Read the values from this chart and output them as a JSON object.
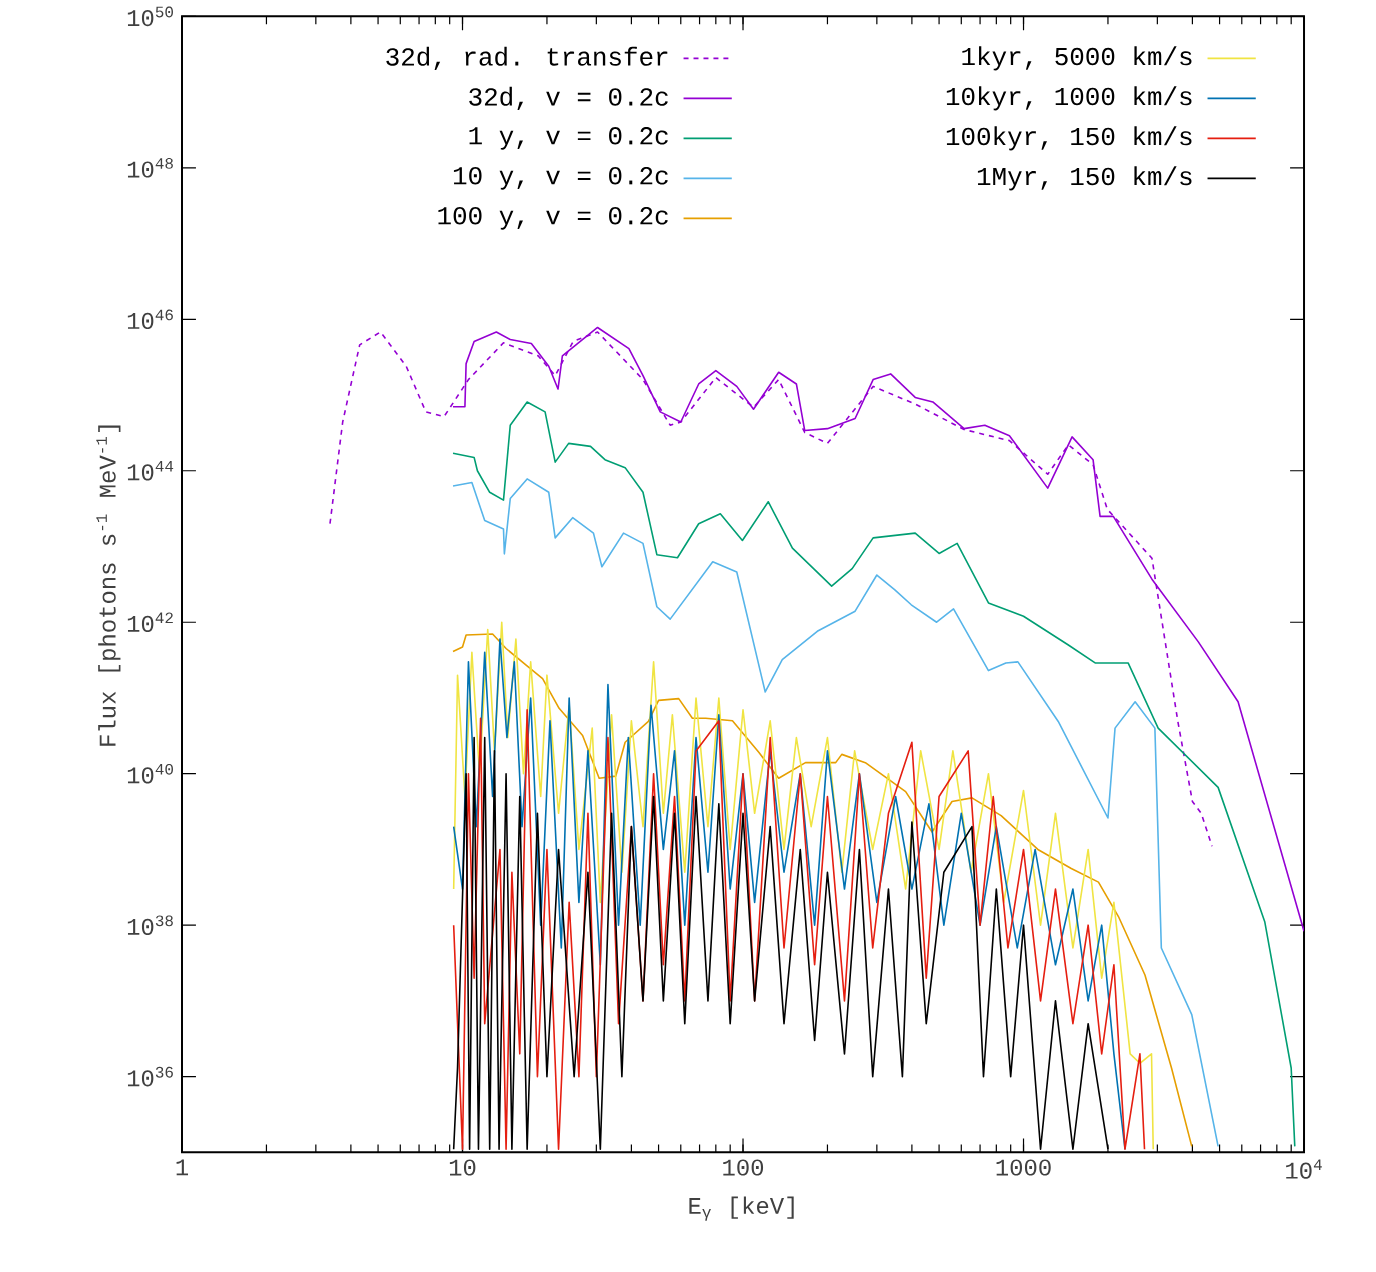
{
  "chart_data": {
    "type": "line",
    "xlabel": "E$_{γ}$ [keV]",
    "ylabel": "Flux [photons s$^{-1}$ MeV$^{-1}$]",
    "log": "xy",
    "legend": "top",
    "xlim": [
      1,
      10000
    ],
    "ylim": [
      1e+35,
      1e+50
    ],
    "xticks": [
      1,
      10,
      100,
      1000,
      {
        "value": 10000,
        "label": "10$^{4}$"
      }
    ],
    "yticks": [
      {
        "value": 1e+36,
        "label": "10$^{36}$"
      },
      {
        "value": 1e+38,
        "label": "10$^{38}$"
      },
      {
        "value": 1e+40,
        "label": "10$^{40}$"
      },
      {
        "value": 1e+42,
        "label": "10$^{42}$"
      },
      {
        "value": 1e+44,
        "label": "10$^{44}$"
      },
      {
        "value": 1e+46,
        "label": "10$^{46}$"
      },
      {
        "value": 1e+48,
        "label": "10$^{48}$"
      },
      {
        "value": 1e+50,
        "label": "10$^{50}$"
      }
    ],
    "series": [
      {
        "name": "32d, rad. transfer",
        "color": "#9400d3",
        "line_style": "dashed",
        "x": [
          3.37,
          3.74,
          4.3,
          5.1,
          6.3,
          7.4,
          8.6,
          10.5,
          14,
          18.6,
          21.4,
          24.8,
          30.3,
          44,
          55,
          60,
          80,
          109,
          134,
          166,
          200,
          291,
          411,
          614,
          891,
          1220,
          1445,
          1770,
          1990,
          2870,
          3550,
          4000,
          4300,
          4700
        ],
        "values": [
          2e+43,
          4.4e+44,
          4.6e+45,
          6.8e+45,
          2.4e+45,
          6e+44,
          5.2e+44,
          1.6e+45,
          4.9e+45,
          3.3e+45,
          1.8e+45,
          5.1e+45,
          6.8e+45,
          1.6e+45,
          4e+44,
          4.4e+44,
          1.7e+45,
          6.9e+44,
          1.6e+45,
          3.2e+44,
          2.3e+44,
          1.3e+45,
          7.6e+44,
          3.5e+44,
          2.5e+44,
          9e+43,
          2.2e+44,
          1.2e+44,
          3.1e+43,
          7e+42,
          4.9e+40,
          4.3e+39,
          3e+39,
          1.1e+39
        ]
      },
      {
        "name": "32d, v = 0.2c",
        "color": "#9400d3",
        "x": [
          9.25,
          10.2,
          10.3,
          11,
          13.2,
          14.8,
          17.6,
          20.3,
          21.9,
          22.7,
          30.3,
          39.2,
          44,
          50.7,
          60,
          69.5,
          80,
          95,
          109,
          134,
          155,
          166,
          200,
          251,
          291,
          336,
          411,
          475,
          614,
          728,
          891,
          1220,
          1490,
          1770,
          1875,
          2090,
          2870,
          4200,
          5820,
          10000
        ],
        "values": [
          7e+44,
          7e+44,
          2.6e+45,
          5.1e+45,
          6.8e+45,
          5.4e+45,
          4.8e+45,
          2.4e+45,
          1.2e+45,
          3.3e+45,
          7.8e+45,
          4.1e+45,
          1.8e+45,
          6e+44,
          4.4e+44,
          1.4e+45,
          2.1e+45,
          1.3e+45,
          6.5e+44,
          2e+45,
          1.4e+45,
          3.4e+44,
          3.6e+44,
          4.9e+44,
          1.6e+45,
          1.9e+45,
          9.3e+44,
          8.1e+44,
          3.6e+44,
          4e+44,
          2.9e+44,
          5.9e+43,
          2.8e+44,
          1.4e+44,
          2.5e+43,
          2.5e+43,
          3.7e+42,
          5.5e+41,
          8.9e+40,
          8.3e+37
        ]
      },
      {
        "name": "1 y, v = 0.2c",
        "color": "#009e73",
        "x": [
          9.25,
          11,
          11.3,
          12.5,
          14,
          14.8,
          17,
          19.7,
          21.4,
          23.9,
          28.6,
          32.2,
          38,
          44,
          49.3,
          58.4,
          69.5,
          83,
          99.5,
          123,
          150,
          207,
          245,
          291,
          411,
          500,
          580,
          750,
          1000,
          1445,
          1800,
          2360,
          3020,
          4940,
          7250,
          9000,
          9270
        ],
        "values": [
          1.7e+44,
          1.5e+44,
          1e+44,
          5.2e+43,
          4.1e+43,
          4e+44,
          8.1e+44,
          6e+44,
          1.3e+44,
          2.3e+44,
          2.1e+44,
          1.4e+44,
          1.1e+44,
          5.2e+43,
          7.8e+42,
          7.1e+42,
          2e+43,
          2.7e+43,
          1.2e+43,
          3.9e+43,
          9.5e+42,
          3e+42,
          5.1e+42,
          1.3e+43,
          1.5e+43,
          8.1e+42,
          1.1e+43,
          1.8e+42,
          1.2e+42,
          5e+41,
          2.9e+41,
          2.9e+41,
          4e+40,
          6.6e+39,
          1.1e+38,
          1.3e+36,
          1.2e+35
        ]
      },
      {
        "name": "10 y, v = 0.2c",
        "color": "#56b4e9",
        "x": [
          9.25,
          10.8,
          12,
          14,
          14.1,
          14.8,
          17,
          20.3,
          21.4,
          24.7,
          29.3,
          31.4,
          37.5,
          44,
          49.3,
          55,
          78,
          95,
          120,
          138,
          184,
          251,
          300,
          347,
          398,
          490,
          563,
          750,
          865,
          955,
          1330,
          2000,
          2120,
          2500,
          2940,
          3100,
          3980,
          4940
        ],
        "values": [
          6.3e+43,
          7e+43,
          2.2e+43,
          1.7e+43,
          8e+42,
          4.3e+43,
          7.8e+43,
          5.2e+43,
          1.3e+43,
          2.4e+43,
          1.5e+43,
          5.4e+42,
          1.5e+43,
          1.1e+43,
          1.6e+42,
          1.1e+42,
          6.3e+42,
          4.6e+42,
          1.2e+41,
          3.2e+41,
          7.6e+41,
          1.4e+42,
          4.2e+42,
          2.7e+42,
          1.7e+42,
          1e+42,
          1.5e+42,
          2.3e+41,
          2.9e+41,
          3e+41,
          4.9e+40,
          2.6e+39,
          4e+40,
          8.9e+40,
          4e+40,
          5e+37,
          6.6e+36,
          1.2e+35
        ]
      },
      {
        "name": "100 y, v = 0.2c",
        "color": "#e69f00",
        "x": [
          9.25,
          10,
          10.3,
          12.8,
          14.3,
          16.9,
          19.3,
          22.1,
          26.8,
          30.7,
          35.2,
          38,
          46,
          50,
          59,
          66,
          73.6,
          91.7,
          114,
          134,
          167,
          214,
          225,
          273,
          380,
          472,
          556,
          655,
          832,
          1125,
          1480,
          1850,
          2180,
          2710,
          3370,
          3980
        ],
        "values": [
          4.1e+41,
          4.7e+41,
          6.8e+41,
          7e+41,
          4.5e+41,
          2.7e+41,
          1.8e+41,
          7.3e+40,
          3.2e+40,
          8.7e+39,
          9.3e+39,
          2.6e+40,
          4.9e+40,
          9.3e+40,
          9.8e+40,
          5.4e+40,
          5.4e+40,
          5e+40,
          1.9e+40,
          8.7e+39,
          1.4e+40,
          1.4e+40,
          1.8e+40,
          1.4e+40,
          5.8e+39,
          1.7e+39,
          4.3e+39,
          4.8e+39,
          2.8e+39,
          1e+39,
          5.6e+38,
          3.7e+38,
          1.3e+38,
          2.2e+37,
          1.3e+36,
          1.2e+35
        ]
      },
      {
        "name": "1kyr, 5000 km/s",
        "color": "#f0e442",
        "x": [
          9.3,
          9.6,
          10.2,
          10.8,
          11.5,
          12.3,
          13,
          13.8,
          14.5,
          15.5,
          16.5,
          17.5,
          19,
          20,
          22,
          24,
          26,
          29,
          31,
          34,
          37,
          40,
          44,
          48,
          52,
          56,
          62,
          68,
          75,
          82,
          90,
          100,
          110,
          125,
          140,
          155,
          175,
          200,
          225,
          250,
          290,
          330,
          380,
          430,
          500,
          560,
          650,
          750,
          850,
          1000,
          1150,
          1300,
          1500,
          1700,
          1900,
          2100,
          2400,
          2600,
          2860,
          2900
        ],
        "values": [
          3e+38,
          2e+41,
          5e+39,
          4e+41,
          1e+40,
          8e+41,
          2e+40,
          1e+42,
          3e+40,
          6e+41,
          1e+40,
          3e+41,
          5e+39,
          2e+41,
          3e+39,
          8e+40,
          1e+39,
          4e+40,
          2e+38,
          6e+40,
          5e+38,
          5e+40,
          2e+39,
          3e+41,
          3e+39,
          6e+40,
          5e+38,
          1e+41,
          2e+39,
          1e+41,
          1e+39,
          7e+40,
          3e+39,
          5e+40,
          1e+39,
          3e+40,
          2e+39,
          3e+40,
          5e+38,
          2e+40,
          1e+39,
          1e+40,
          3e+38,
          2e+40,
          1e+39,
          2e+40,
          5e+38,
          1e+40,
          2e+38,
          6e+39,
          1e+38,
          3e+39,
          5e+37,
          1e+39,
          2e+37,
          2e+38,
          2e+36,
          1.5e+36,
          2e+36,
          1.1e+35
        ]
      },
      {
        "name": "10kyr, 1000 km/s",
        "color": "#0072b2",
        "x": [
          9.3,
          10,
          10.5,
          11.2,
          12,
          12.8,
          13.6,
          14.4,
          15.3,
          16.3,
          17.5,
          19,
          20.5,
          22.5,
          24,
          26,
          28,
          31,
          33,
          36,
          39,
          43,
          47,
          52,
          57,
          62,
          68,
          75,
          82,
          90,
          100,
          110,
          125,
          140,
          160,
          180,
          200,
          230,
          260,
          300,
          350,
          400,
          460,
          520,
          600,
          700,
          800,
          950,
          1100,
          1300,
          1500,
          1700,
          1900,
          2100,
          2300
        ],
        "values": [
          2e+39,
          3e+38,
          3e+41,
          2e+39,
          4e+41,
          5e+39,
          6e+41,
          3e+40,
          3e+41,
          2e+39,
          1e+41,
          1e+38,
          5e+40,
          5e+37,
          1e+41,
          2e+38,
          2e+40,
          3e+37,
          1.5e+41,
          1e+38,
          3e+40,
          1e+38,
          8e+40,
          1e+39,
          2e+40,
          1e+38,
          3e+40,
          5e+38,
          6e+40,
          3e+38,
          1e+40,
          2e+38,
          2e+40,
          5e+38,
          1e+40,
          1e+38,
          2e+40,
          3e+38,
          1e+40,
          2e+38,
          5e+39,
          3e+38,
          4e+39,
          1e+38,
          3e+39,
          1e+38,
          2e+39,
          5e+37,
          1e+39,
          3e+37,
          3e+38,
          1e+37,
          1e+38,
          2e+36,
          1.1e+35
        ]
      },
      {
        "name": "100kyr, 150 km/s",
        "color": "#e51e10",
        "x": [
          9.3,
          10,
          10.5,
          11,
          11.6,
          12,
          13.6,
          14.3,
          15,
          16,
          17,
          18.5,
          20,
          22,
          24,
          26,
          28,
          30,
          33,
          36,
          40,
          44,
          48,
          52,
          57,
          62,
          68,
          82,
          90,
          100,
          110,
          125,
          140,
          160,
          180,
          200,
          230,
          260,
          290,
          330,
          400,
          450,
          500,
          635,
          700,
          780,
          880,
          1000,
          1150,
          1300,
          1500,
          1700,
          1900,
          2100,
          2300,
          2600,
          2700
        ],
        "values": [
          1e+38,
          1.1e+35,
          1e+40,
          2e+37,
          5.4e+40,
          5e+36,
          1e+39,
          1.1e+35,
          5e+38,
          2e+36,
          7e+40,
          1e+36,
          1e+39,
          1.1e+35,
          2e+38,
          1e+36,
          3e+39,
          1e+36,
          3e+40,
          5e+36,
          2e+39,
          1e+37,
          1e+40,
          3e+37,
          5e+39,
          1e+37,
          2e+40,
          5e+40,
          1e+37,
          1e+40,
          1e+37,
          3e+40,
          5e+37,
          1e+40,
          3e+37,
          5e+39,
          1e+37,
          1e+40,
          5e+37,
          3e+39,
          2.6e+40,
          2e+37,
          5e+39,
          2e+40,
          1e+38,
          5e+39,
          5e+37,
          1e+39,
          1e+37,
          3e+38,
          5e+36,
          1e+38,
          2e+36,
          3e+37,
          1.1e+35,
          2e+36,
          1.1e+35
        ]
      },
      {
        "name": "1Myr, 150 km/s",
        "color": "#000000",
        "x": [
          9.3,
          9.6,
          10.3,
          10.6,
          11,
          11.4,
          12,
          12.5,
          13,
          13.5,
          14.3,
          15,
          16,
          17,
          18.5,
          20,
          22,
          25,
          28,
          31,
          34,
          37,
          40,
          44,
          48,
          52,
          57,
          62,
          68,
          75,
          82,
          90,
          100,
          110,
          125,
          140,
          160,
          180,
          200,
          230,
          260,
          290,
          330,
          370,
          400,
          450,
          520,
          655,
          720,
          800,
          900,
          1000,
          1150,
          1300,
          1500,
          1700,
          2000
        ],
        "values": [
          1.1e+35,
          1.3e+36,
          1e+40,
          1.1e+35,
          3e+40,
          1.1e+35,
          3e+40,
          1.1e+35,
          2e+40,
          1.1e+35,
          1e+40,
          1.1e+35,
          5e+39,
          1.1e+35,
          3e+39,
          1e+36,
          1e+39,
          1e+36,
          5e+38,
          1.1e+35,
          3e+39,
          1e+36,
          2e+39,
          1e+37,
          5e+39,
          1e+37,
          3e+39,
          5e+36,
          5e+39,
          1e+37,
          4e+39,
          5e+36,
          3e+39,
          1e+37,
          2e+39,
          5e+36,
          1e+39,
          3e+36,
          5e+38,
          2e+36,
          1e+39,
          1e+36,
          3e+38,
          1e+36,
          2.3e+39,
          5e+36,
          5e+38,
          2e+39,
          1e+36,
          3e+38,
          1e+36,
          1e+38,
          1.1e+35,
          1e+37,
          1.1e+35,
          5e+36,
          1.1e+35
        ]
      }
    ]
  }
}
